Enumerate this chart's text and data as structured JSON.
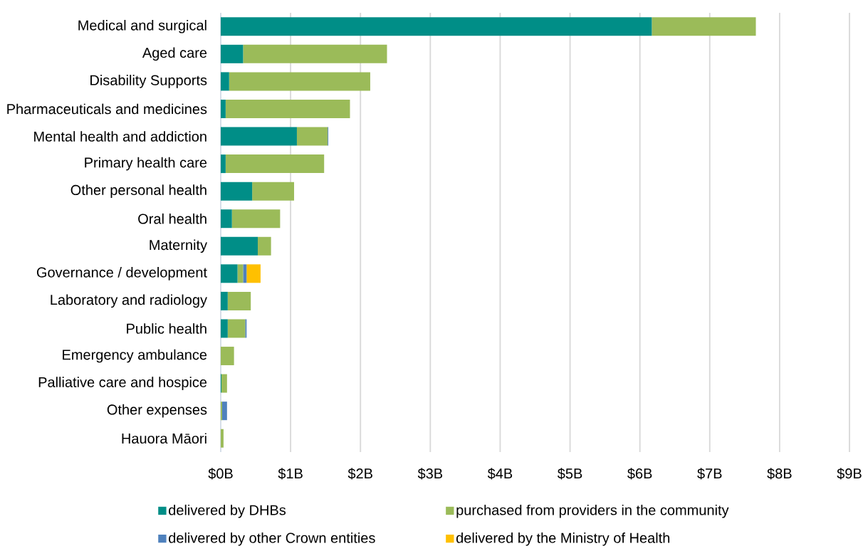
{
  "chart_data": {
    "type": "bar",
    "orientation": "horizontal",
    "stacked": true,
    "categories": [
      "Medical and surgical",
      "Aged care",
      "Disability Supports",
      "Pharmaceuticals and medicines",
      "Mental health and addiction",
      "Primary health care",
      "Other personal health",
      "Oral health",
      "Maternity",
      "Governance / development",
      "Laboratory and radiology",
      "Public health",
      "Emergency ambulance",
      "Palliative care and hospice",
      "Other expenses",
      "Hauora Māori"
    ],
    "series": [
      {
        "name": "delivered by DHBs",
        "color": "#008e87",
        "values": [
          6.17,
          0.32,
          0.12,
          0.07,
          1.09,
          0.07,
          0.45,
          0.16,
          0.53,
          0.24,
          0.1,
          0.1,
          null,
          0.01,
          null,
          null
        ]
      },
      {
        "name": "purchased from providers in the community",
        "color": "#9bbb59",
        "values": [
          1.49,
          2.06,
          2.02,
          1.78,
          0.44,
          1.41,
          0.6,
          0.69,
          0.19,
          0.08,
          0.33,
          0.25,
          0.19,
          0.08,
          0.02,
          0.04
        ]
      },
      {
        "name": "delivered by other Crown entities",
        "color": "#4f81bd",
        "values": [
          null,
          null,
          null,
          null,
          0.01,
          null,
          null,
          null,
          null,
          0.05,
          null,
          0.02,
          null,
          null,
          0.07,
          null
        ]
      },
      {
        "name": "delivered by the Ministry of Health",
        "color": "#ffc000",
        "values": [
          null,
          null,
          null,
          null,
          null,
          null,
          null,
          null,
          null,
          0.2,
          null,
          null,
          null,
          null,
          null,
          null
        ]
      }
    ],
    "xlim": [
      0,
      9
    ],
    "xticks": [
      {
        "value": 0,
        "label": "$0B"
      },
      {
        "value": 1,
        "label": "$1B"
      },
      {
        "value": 2,
        "label": "$2B"
      },
      {
        "value": 3,
        "label": "$3B"
      },
      {
        "value": 4,
        "label": "$4B"
      },
      {
        "value": 5,
        "label": "$5B"
      },
      {
        "value": 6,
        "label": "$6B"
      },
      {
        "value": 7,
        "label": "$7B"
      },
      {
        "value": 8,
        "label": "$8B"
      },
      {
        "value": 9,
        "label": "$9B"
      }
    ],
    "grid": "x",
    "legend": "bottom"
  }
}
